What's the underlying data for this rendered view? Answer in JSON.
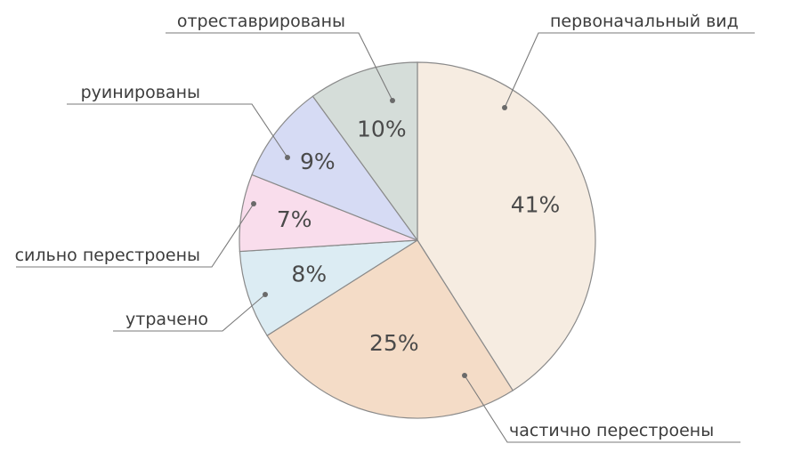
{
  "chart_data": {
    "type": "pie",
    "title": "",
    "legend": "none",
    "slices": [
      {
        "label": "первоначальный вид",
        "value": 41,
        "value_label": "41%",
        "color": "#f6ece1"
      },
      {
        "label": "частично перестроены",
        "value": 25,
        "value_label": "25%",
        "color": "#f4dcc7"
      },
      {
        "label": "утрачено",
        "value": 8,
        "value_label": "8%",
        "color": "#dcecf3"
      },
      {
        "label": "сильно перестроены",
        "value": 7,
        "value_label": "7%",
        "color": "#f9ddec"
      },
      {
        "label": "руинированы",
        "value": 9,
        "value_label": "9%",
        "color": "#d6dbf4"
      },
      {
        "label": "отреставрированы",
        "value": 10,
        "value_label": "10%",
        "color": "#d5ddd9"
      }
    ]
  }
}
